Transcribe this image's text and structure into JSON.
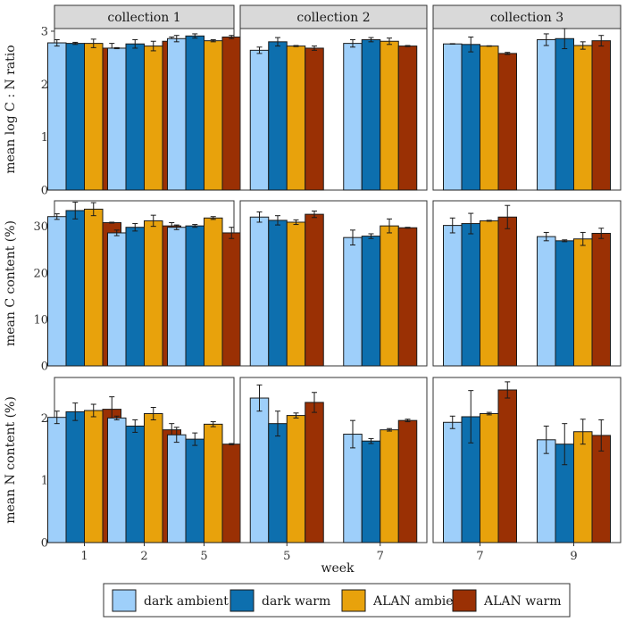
{
  "chart_data": {
    "type": "bar",
    "xlabel": "week",
    "legend_position": "bottom",
    "grid": false,
    "facet_columns": [
      "collection 1",
      "collection 2",
      "collection 3"
    ],
    "series": [
      {
        "name": "dark ambient",
        "color": "#9ecffa"
      },
      {
        "name": "dark warm",
        "color": "#0d6fae"
      },
      {
        "name": "ALAN ambient",
        "color": "#e8a20c"
      },
      {
        "name": "ALAN warm",
        "color": "#9a3004"
      }
    ],
    "rows": [
      {
        "ylabel": "mean log C : N ratio",
        "ylim": [
          0,
          3.05
        ],
        "ticks": [
          0,
          1,
          2,
          3
        ],
        "panels": [
          {
            "categories": [
              "1",
              "2",
              "5"
            ],
            "values": [
              [
                2.78,
                2.77,
                2.77,
                2.68
              ],
              [
                2.68,
                2.76,
                2.72,
                2.81
              ],
              [
                2.86,
                2.91,
                2.82,
                2.89
              ]
            ],
            "errors": [
              [
                0.06,
                0.02,
                0.08,
                0.09
              ],
              [
                0.01,
                0.08,
                0.09,
                0.08
              ],
              [
                0.06,
                0.04,
                0.02,
                0.03
              ]
            ]
          },
          {
            "categories": [
              "5",
              "7"
            ],
            "values": [
              [
                2.64,
                2.8,
                2.72,
                2.68
              ],
              [
                2.77,
                2.84,
                2.81,
                2.72
              ]
            ],
            "errors": [
              [
                0.06,
                0.08,
                0.01,
                0.04
              ],
              [
                0.07,
                0.04,
                0.06,
                0.01
              ]
            ]
          },
          {
            "categories": [
              "7",
              "9"
            ],
            "values": [
              [
                2.76,
                2.75,
                2.72,
                2.58
              ],
              [
                2.84,
                2.86,
                2.73,
                2.82
              ]
            ],
            "errors": [
              [
                0.005,
                0.14,
                0.005,
                0.02
              ],
              [
                0.11,
                0.19,
                0.07,
                0.1
              ]
            ]
          }
        ]
      },
      {
        "ylabel": "mean C content (%)",
        "ylim": [
          0,
          35.5
        ],
        "ticks": [
          0,
          10,
          20,
          30
        ],
        "panels": [
          {
            "categories": [
              "1",
              "2",
              "5"
            ],
            "values": [
              [
                32.1,
                33.4,
                33.7,
                30.8
              ],
              [
                28.6,
                29.8,
                31.2,
                30.1
              ],
              [
                29.8,
                30.1,
                31.8,
                28.6
              ]
            ],
            "errors": [
              [
                0.6,
                1.8,
                1.4,
                0.1
              ],
              [
                0.6,
                0.8,
                1.2,
                0.7
              ],
              [
                0.5,
                0.3,
                0.3,
                1.2
              ]
            ]
          },
          {
            "categories": [
              "5",
              "7"
            ],
            "values": [
              [
                32.0,
                31.3,
                30.9,
                32.6
              ],
              [
                27.6,
                27.9,
                30.1,
                29.7
              ]
            ],
            "errors": [
              [
                1.1,
                1.0,
                0.5,
                0.7
              ],
              [
                1.6,
                0.5,
                1.5,
                0.1
              ]
            ]
          },
          {
            "categories": [
              "7",
              "9"
            ],
            "values": [
              [
                30.2,
                30.6,
                31.2,
                32.0
              ],
              [
                27.8,
                26.9,
                27.3,
                28.5
              ]
            ],
            "errors": [
              [
                1.6,
                2.2,
                0.1,
                2.5
              ],
              [
                0.9,
                0.2,
                1.4,
                1.1
              ]
            ]
          }
        ]
      },
      {
        "ylabel": "mean N content (%)",
        "ylim": [
          0,
          2.65
        ],
        "ticks": [
          0,
          1,
          2
        ],
        "panels": [
          {
            "categories": [
              "1",
              "2",
              "5"
            ],
            "values": [
              [
                2.01,
                2.1,
                2.12,
                2.14
              ],
              [
                2.0,
                1.87,
                2.07,
                1.81
              ],
              [
                1.73,
                1.66,
                1.9,
                1.58
              ]
            ],
            "errors": [
              [
                0.1,
                0.14,
                0.1,
                0.2
              ],
              [
                0.03,
                0.1,
                0.1,
                0.1
              ],
              [
                0.12,
                0.1,
                0.04,
                0.01
              ]
            ]
          },
          {
            "categories": [
              "5",
              "7"
            ],
            "values": [
              [
                2.32,
                1.91,
                2.04,
                2.25
              ],
              [
                1.74,
                1.63,
                1.81,
                1.96
              ]
            ],
            "errors": [
              [
                0.21,
                0.2,
                0.04,
                0.16
              ],
              [
                0.22,
                0.04,
                0.02,
                0.02
              ]
            ]
          },
          {
            "categories": [
              "7",
              "9"
            ],
            "values": [
              [
                1.93,
                2.02,
                2.07,
                2.45
              ],
              [
                1.65,
                1.58,
                1.78,
                1.72
              ]
            ],
            "errors": [
              [
                0.1,
                0.42,
                0.02,
                0.13
              ],
              [
                0.22,
                0.33,
                0.2,
                0.25
              ]
            ]
          }
        ]
      }
    ]
  }
}
